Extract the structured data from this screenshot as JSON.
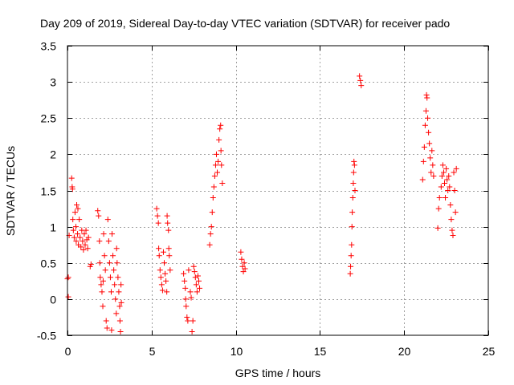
{
  "chart_data": {
    "type": "scatter",
    "title": "Day 209 of 2019, Sidereal Day-to-day VTEC variation (SDTVAR) for receiver pado",
    "xlabel": "GPS time / hours",
    "ylabel": "SDTVAR / TECUs",
    "xlim": [
      0,
      25
    ],
    "ylim": [
      -0.5,
      3.5
    ],
    "xticks": [
      0,
      5,
      10,
      15,
      20,
      25
    ],
    "xtick_labels": [
      "0",
      "5",
      "10",
      "15",
      "20",
      "25"
    ],
    "yticks": [
      -0.5,
      0,
      0.5,
      1,
      1.5,
      2,
      2.5,
      3,
      3.5
    ],
    "ytick_labels": [
      "-0.5",
      "0",
      "0.5",
      "1",
      "1.5",
      "2",
      "2.5",
      "3",
      "3.5"
    ],
    "grid": true,
    "marker": "+",
    "color": "#ff0000",
    "series": [
      {
        "name": "SDTVAR",
        "points": [
          [
            0.0,
            0.28
          ],
          [
            0.05,
            0.3
          ],
          [
            0.05,
            0.03
          ],
          [
            0.1,
            0.88
          ],
          [
            0.25,
            1.67
          ],
          [
            0.28,
            1.55
          ],
          [
            0.3,
            1.52
          ],
          [
            0.32,
            1.1
          ],
          [
            0.35,
            0.95
          ],
          [
            0.4,
            0.85
          ],
          [
            0.45,
            1.2
          ],
          [
            0.5,
            1.0
          ],
          [
            0.52,
            0.8
          ],
          [
            0.55,
            1.3
          ],
          [
            0.6,
            0.9
          ],
          [
            0.62,
            1.25
          ],
          [
            0.65,
            0.75
          ],
          [
            0.7,
            1.1
          ],
          [
            0.75,
            0.85
          ],
          [
            0.8,
            0.72
          ],
          [
            0.85,
            0.95
          ],
          [
            0.9,
            0.8
          ],
          [
            0.95,
            0.68
          ],
          [
            1.0,
            0.9
          ],
          [
            1.05,
            0.75
          ],
          [
            1.1,
            0.95
          ],
          [
            1.15,
            0.82
          ],
          [
            1.2,
            0.7
          ],
          [
            1.25,
            0.85
          ],
          [
            1.35,
            0.45
          ],
          [
            1.4,
            0.48
          ],
          [
            1.8,
            1.22
          ],
          [
            1.85,
            1.15
          ],
          [
            1.9,
            0.8
          ],
          [
            1.92,
            0.5
          ],
          [
            1.95,
            0.3
          ],
          [
            2.0,
            0.2
          ],
          [
            2.05,
            0.1
          ],
          [
            2.1,
            -0.1
          ],
          [
            2.12,
            0.25
          ],
          [
            2.15,
            0.9
          ],
          [
            2.2,
            0.6
          ],
          [
            2.25,
            0.4
          ],
          [
            2.3,
            -0.3
          ],
          [
            2.35,
            -0.4
          ],
          [
            2.4,
            1.1
          ],
          [
            2.45,
            0.8
          ],
          [
            2.5,
            0.5
          ],
          [
            2.55,
            0.3
          ],
          [
            2.6,
            0.1
          ],
          [
            2.62,
            -0.43
          ],
          [
            2.65,
            0.9
          ],
          [
            2.7,
            0.6
          ],
          [
            2.75,
            0.4
          ],
          [
            2.8,
            0.2
          ],
          [
            2.85,
            0.0
          ],
          [
            2.9,
            -0.2
          ],
          [
            2.92,
            0.7
          ],
          [
            2.95,
            0.5
          ],
          [
            3.0,
            0.3
          ],
          [
            3.05,
            0.1
          ],
          [
            3.1,
            -0.1
          ],
          [
            3.12,
            -0.3
          ],
          [
            3.15,
            -0.45
          ],
          [
            3.18,
            0.2
          ],
          [
            3.2,
            -0.05
          ],
          [
            5.3,
            1.25
          ],
          [
            5.35,
            1.15
          ],
          [
            5.4,
            1.05
          ],
          [
            5.42,
            0.7
          ],
          [
            5.45,
            0.6
          ],
          [
            5.5,
            0.4
          ],
          [
            5.55,
            0.3
          ],
          [
            5.6,
            0.2
          ],
          [
            5.65,
            0.12
          ],
          [
            5.7,
            0.65
          ],
          [
            5.75,
            0.5
          ],
          [
            5.8,
            0.35
          ],
          [
            5.85,
            0.25
          ],
          [
            5.9,
            0.1
          ],
          [
            5.92,
            1.15
          ],
          [
            5.95,
            1.05
          ],
          [
            6.0,
            0.95
          ],
          [
            6.02,
            0.7
          ],
          [
            6.05,
            0.6
          ],
          [
            6.1,
            0.4
          ],
          [
            6.9,
            0.35
          ],
          [
            6.95,
            0.25
          ],
          [
            7.0,
            0.15
          ],
          [
            7.02,
            0.0
          ],
          [
            7.05,
            -0.1
          ],
          [
            7.1,
            -0.25
          ],
          [
            7.15,
            -0.3
          ],
          [
            7.2,
            0.4
          ],
          [
            7.3,
            0.1
          ],
          [
            7.35,
            0.02
          ],
          [
            7.4,
            -0.45
          ],
          [
            7.45,
            -0.3
          ],
          [
            7.5,
            0.45
          ],
          [
            7.55,
            0.38
          ],
          [
            7.6,
            0.3
          ],
          [
            7.65,
            0.2
          ],
          [
            7.7,
            0.1
          ],
          [
            7.75,
            0.32
          ],
          [
            7.8,
            0.25
          ],
          [
            7.85,
            0.15
          ],
          [
            8.45,
            0.75
          ],
          [
            8.5,
            0.9
          ],
          [
            8.55,
            1.0
          ],
          [
            8.6,
            1.2
          ],
          [
            8.65,
            1.4
          ],
          [
            8.7,
            1.55
          ],
          [
            8.75,
            1.7
          ],
          [
            8.8,
            1.85
          ],
          [
            8.85,
            2.0
          ],
          [
            8.9,
            1.75
          ],
          [
            8.95,
            1.9
          ],
          [
            9.0,
            2.2
          ],
          [
            9.05,
            2.35
          ],
          [
            9.1,
            2.4
          ],
          [
            9.12,
            2.05
          ],
          [
            9.15,
            1.85
          ],
          [
            9.2,
            1.6
          ],
          [
            10.3,
            0.65
          ],
          [
            10.35,
            0.55
          ],
          [
            10.4,
            0.45
          ],
          [
            10.45,
            0.38
          ],
          [
            10.5,
            0.5
          ],
          [
            10.55,
            0.42
          ],
          [
            16.8,
            0.35
          ],
          [
            16.82,
            0.45
          ],
          [
            16.85,
            0.6
          ],
          [
            16.88,
            0.75
          ],
          [
            16.9,
            1.0
          ],
          [
            16.92,
            1.2
          ],
          [
            16.95,
            1.4
          ],
          [
            16.98,
            1.6
          ],
          [
            17.0,
            1.75
          ],
          [
            17.02,
            1.9
          ],
          [
            17.05,
            1.85
          ],
          [
            17.08,
            1.5
          ],
          [
            17.35,
            3.08
          ],
          [
            17.4,
            3.02
          ],
          [
            17.45,
            2.95
          ],
          [
            21.1,
            1.65
          ],
          [
            21.15,
            1.9
          ],
          [
            21.2,
            2.1
          ],
          [
            21.25,
            2.4
          ],
          [
            21.3,
            2.6
          ],
          [
            21.33,
            2.82
          ],
          [
            21.36,
            2.78
          ],
          [
            21.4,
            2.5
          ],
          [
            21.45,
            2.3
          ],
          [
            21.5,
            2.15
          ],
          [
            21.55,
            1.95
          ],
          [
            21.6,
            1.75
          ],
          [
            21.65,
            2.05
          ],
          [
            21.7,
            1.85
          ],
          [
            21.75,
            1.7
          ],
          [
            22.0,
            0.98
          ],
          [
            22.05,
            1.25
          ],
          [
            22.1,
            1.4
          ],
          [
            22.2,
            1.55
          ],
          [
            22.25,
            1.7
          ],
          [
            22.3,
            1.85
          ],
          [
            22.35,
            1.75
          ],
          [
            22.4,
            1.6
          ],
          [
            22.45,
            1.4
          ],
          [
            22.5,
            1.8
          ],
          [
            22.55,
            1.65
          ],
          [
            22.6,
            1.5
          ],
          [
            22.65,
            1.7
          ],
          [
            22.7,
            1.55
          ],
          [
            22.75,
            1.3
          ],
          [
            22.8,
            1.1
          ],
          [
            22.85,
            0.95
          ],
          [
            22.9,
            0.88
          ],
          [
            22.95,
            1.75
          ],
          [
            23.0,
            1.5
          ],
          [
            23.05,
            1.2
          ],
          [
            23.1,
            1.8
          ]
        ]
      }
    ]
  }
}
